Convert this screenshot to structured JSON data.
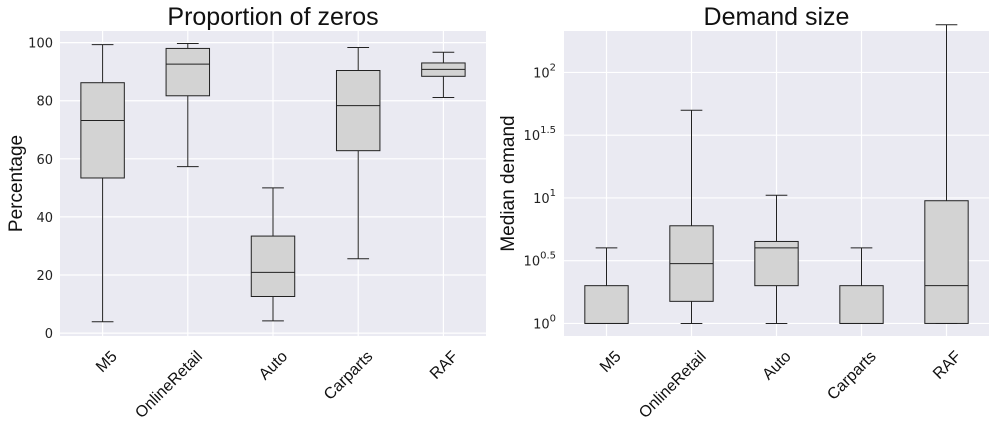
{
  "chart_data": [
    {
      "type": "box",
      "title": "Proportion of zeros",
      "ylabel": "Percentage",
      "xlabel": "",
      "scale": "linear",
      "ylim": [
        -1,
        104
      ],
      "yticks": [
        0,
        20,
        40,
        60,
        80,
        100
      ],
      "ytick_labels": [
        "0",
        "20",
        "40",
        "60",
        "80",
        "100"
      ],
      "categories": [
        "M5",
        "OnlineRetail",
        "Auto",
        "Carparts",
        "RAF"
      ],
      "boxes": [
        {
          "min": 3.9,
          "q1": 53.4,
          "median": 73.2,
          "q3": 86.2,
          "max": 99.3
        },
        {
          "min": 57.3,
          "q1": 81.7,
          "median": 92.6,
          "q3": 98.0,
          "max": 99.7
        },
        {
          "min": 4.2,
          "q1": 12.6,
          "median": 20.9,
          "q3": 33.4,
          "max": 50.0
        },
        {
          "min": 25.6,
          "q1": 62.8,
          "median": 78.3,
          "q3": 90.4,
          "max": 98.3
        },
        {
          "min": 81.1,
          "q1": 88.4,
          "median": 90.8,
          "q3": 93.0,
          "max": 96.7
        }
      ]
    },
    {
      "type": "box",
      "title": "Demand size",
      "ylabel": "Median demand",
      "xlabel": "",
      "scale": "log10",
      "ylim_exponent": [
        -0.1,
        2.33
      ],
      "yticks_exponent": [
        0,
        0.5,
        1,
        1.5,
        2
      ],
      "ytick_labels": [
        {
          "base": "10",
          "exp": "0"
        },
        {
          "base": "10",
          "exp": "0.5"
        },
        {
          "base": "10",
          "exp": "1"
        },
        {
          "base": "10",
          "exp": "1.5"
        },
        {
          "base": "10",
          "exp": "2"
        }
      ],
      "categories": [
        "M5",
        "OnlineRetail",
        "Auto",
        "Carparts",
        "RAF"
      ],
      "boxes": [
        {
          "min": 1.0,
          "q1": 1.0,
          "median": 1.0,
          "q3": 2.0,
          "max": 4.0
        },
        {
          "min": 1.0,
          "q1": 1.5,
          "median": 3.0,
          "q3": 6.0,
          "max": 50.0
        },
        {
          "min": 1.0,
          "q1": 2.0,
          "median": 4.0,
          "q3": 4.5,
          "max": 10.5
        },
        {
          "min": 1.0,
          "q1": 1.0,
          "median": 1.0,
          "q3": 2.0,
          "max": 4.0
        },
        {
          "min": 1.0,
          "q1": 1.0,
          "median": 2.0,
          "q3": 9.5,
          "max": 240.0
        }
      ]
    }
  ]
}
